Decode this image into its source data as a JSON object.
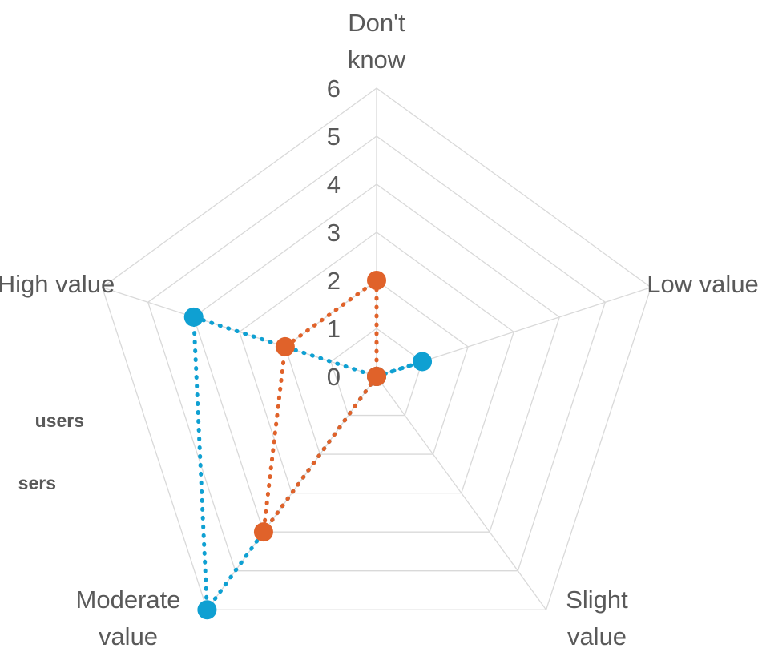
{
  "chart_data": {
    "type": "radar",
    "categories": [
      "Don't know",
      "Low value",
      "Slight value",
      "Moderate value",
      "High value"
    ],
    "series": [
      {
        "name": "users",
        "color": "#0fa0d2",
        "values": [
          0,
          1,
          0,
          6,
          4
        ]
      },
      {
        "name": "sers",
        "color": "#e0622a",
        "values": [
          2,
          0,
          0,
          4,
          2
        ]
      }
    ],
    "rlim": [
      0,
      6
    ],
    "rticks": [
      0,
      1,
      2,
      3,
      4,
      5,
      6
    ],
    "grid": true
  }
}
